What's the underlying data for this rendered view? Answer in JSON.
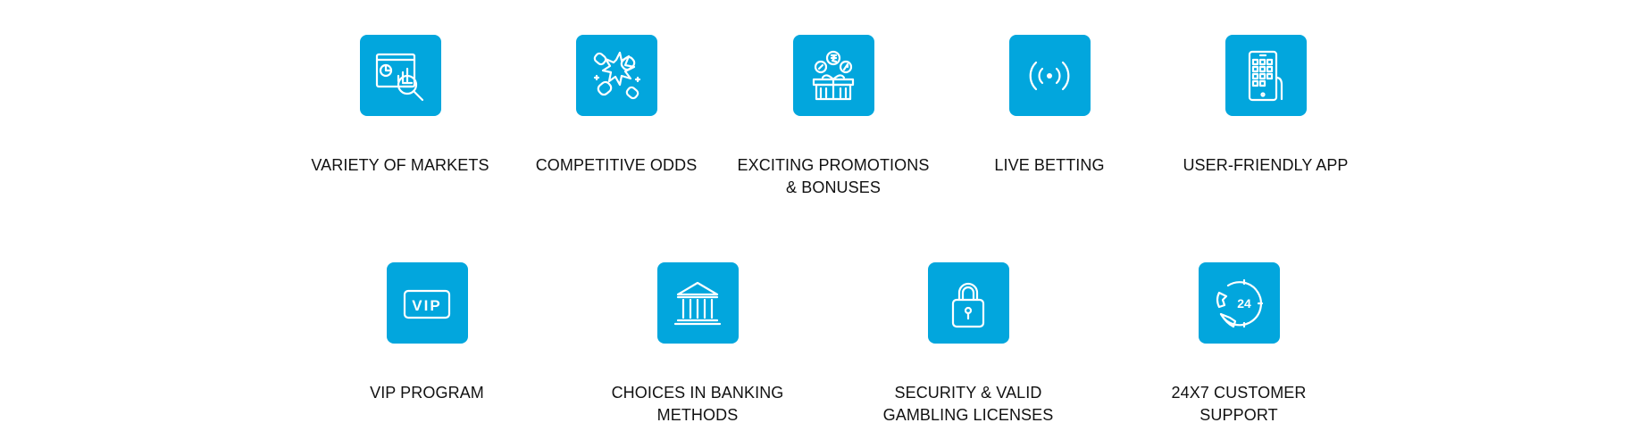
{
  "theme": {
    "tile_color": "#02a6dd",
    "text_color": "#111111"
  },
  "features_row1": [
    {
      "label": "VARIETY OF MARKETS",
      "icon": "market-analysis-icon"
    },
    {
      "label": "COMPETITIVE ODDS",
      "icon": "boxing-gloves-icon"
    },
    {
      "label": "EXCITING PROMOTIONS & BONUSES",
      "icon": "coins-gift-box-icon"
    },
    {
      "label": "LIVE BETTING",
      "icon": "live-broadcast-icon"
    },
    {
      "label": "USER-FRIENDLY APP",
      "icon": "mobile-app-icon"
    }
  ],
  "features_row2": [
    {
      "label": "VIP PROGRAM",
      "icon": "vip-card-icon",
      "icon_text": "VIP"
    },
    {
      "label": "CHOICES IN BANKING METHODS",
      "icon": "bank-icon"
    },
    {
      "label": "SECURITY & VALID GAMBLING LICENSES",
      "icon": "padlock-icon"
    },
    {
      "label": "24X7 CUSTOMER SUPPORT",
      "icon": "support-24-icon",
      "icon_text": "24"
    }
  ]
}
